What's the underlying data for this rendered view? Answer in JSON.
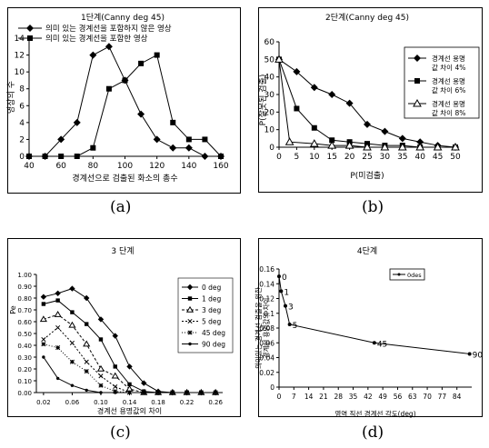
{
  "figure": {
    "captions": [
      "(a)",
      "(b)",
      "(c)",
      "(d)"
    ]
  },
  "chart_data": [
    {
      "type": "line",
      "title": "1단계(Canny deg 45)",
      "xlabel": "경계선으로 검출된 화소의 총수",
      "ylabel": "영상의 수",
      "xlim": [
        40,
        160
      ],
      "ylim": [
        0,
        14
      ],
      "x_ticks": [
        "40",
        "60",
        "80",
        "100",
        "120",
        "140",
        "160"
      ],
      "y_ticks": [
        "0",
        "2",
        "4",
        "6",
        "8",
        "10",
        "12",
        "14"
      ],
      "legend_position": "top",
      "x": [
        40,
        50,
        60,
        70,
        80,
        90,
        100,
        110,
        120,
        130,
        140,
        150,
        160
      ],
      "series": [
        {
          "name": "의미 있는 경계선을 포함하지 않은 영상",
          "marker": "diamond",
          "values": [
            0,
            0,
            2,
            4,
            12,
            13,
            9,
            5,
            2,
            1,
            1,
            0,
            0
          ]
        },
        {
          "name": "의미 있는 경계선을 포함한 영상",
          "marker": "square",
          "values": [
            0,
            0,
            0,
            0,
            1,
            8,
            9,
            11,
            12,
            4,
            2,
            2,
            0
          ]
        }
      ]
    },
    {
      "type": "line",
      "title": "2단계(Canny deg 45)",
      "xlabel": "P(미검출)",
      "ylabel": "P(잘못된 검출)",
      "xlim": [
        0,
        50
      ],
      "ylim": [
        0,
        60
      ],
      "x_ticks": [
        "0",
        "5",
        "10",
        "15",
        "20",
        "25",
        "30",
        "35",
        "40",
        "45",
        "50"
      ],
      "y_ticks": [
        "0",
        "10",
        "20",
        "30",
        "40",
        "50",
        "60"
      ],
      "legend_position": "right",
      "series": [
        {
          "name_line1": "경계선 용명",
          "name_line2": "값 차이 4%",
          "marker": "diamond",
          "x": [
            0,
            5,
            10,
            15,
            20,
            25,
            30,
            35,
            40,
            45,
            50
          ],
          "values": [
            50,
            43,
            34,
            30,
            25,
            13,
            9,
            5,
            3,
            1,
            0
          ]
        },
        {
          "name_line1": "경계선 용명",
          "name_line2": "값 차이 6%",
          "marker": "square",
          "x": [
            0,
            5,
            10,
            15,
            20,
            25,
            30,
            35,
            40,
            45,
            50
          ],
          "values": [
            50,
            22,
            11,
            4,
            3,
            2,
            1,
            1,
            0,
            0,
            0
          ]
        },
        {
          "name_line1": "경계선 용명",
          "name_line2": "값 차이 8%",
          "marker": "triangle",
          "x": [
            0,
            3,
            10,
            15,
            20,
            25,
            30,
            35,
            40,
            45,
            50
          ],
          "values": [
            50,
            3,
            2,
            1,
            1,
            0,
            0,
            0,
            0,
            0,
            0
          ]
        }
      ]
    },
    {
      "type": "line",
      "title": "3 단계",
      "xlabel": "경계선 용명값의 차이",
      "ylabel": "Pe",
      "xlim": [
        0.01,
        0.27
      ],
      "ylim": [
        0,
        1.0
      ],
      "x_ticks": [
        "0.02",
        "0.06",
        "0.10",
        "0.14",
        "0.18",
        "0.22",
        "0.26"
      ],
      "y_ticks": [
        "0.00",
        "0.10",
        "0.20",
        "0.30",
        "0.40",
        "0.50",
        "0.60",
        "0.70",
        "0.80",
        "0.90",
        "1.00"
      ],
      "legend_position": "right",
      "x": [
        0.02,
        0.04,
        0.06,
        0.08,
        0.1,
        0.12,
        0.14,
        0.16,
        0.18,
        0.2,
        0.22,
        0.24,
        0.26
      ],
      "series": [
        {
          "name": "0 deg",
          "marker": "diamond",
          "values": [
            0.81,
            0.84,
            0.88,
            0.8,
            0.62,
            0.48,
            0.22,
            0.08,
            0.01,
            0,
            0,
            0,
            0
          ]
        },
        {
          "name": "1 deg",
          "marker": "square",
          "values": [
            0.75,
            0.78,
            0.68,
            0.58,
            0.45,
            0.22,
            0.07,
            0.01,
            0,
            0,
            0,
            0,
            0
          ]
        },
        {
          "name": "3 deg",
          "marker": "triangle",
          "values": [
            0.62,
            0.66,
            0.57,
            0.41,
            0.2,
            0.14,
            0.03,
            0,
            0,
            0,
            0,
            0,
            0
          ]
        },
        {
          "name": "5 deg",
          "marker": "x",
          "values": [
            0.45,
            0.55,
            0.42,
            0.26,
            0.14,
            0.05,
            0,
            0,
            0,
            0,
            0,
            0,
            0
          ]
        },
        {
          "name": "45 deg",
          "marker": "star",
          "values": [
            0.41,
            0.38,
            0.26,
            0.18,
            0.06,
            0.01,
            0,
            0,
            0,
            0,
            0,
            0,
            0
          ]
        },
        {
          "name": "90 deg",
          "marker": "dot",
          "values": [
            0.3,
            0.12,
            0.06,
            0.02,
            0,
            0,
            0,
            0,
            0,
            0,
            0,
            0,
            0
          ]
        }
      ]
    },
    {
      "type": "line",
      "title": "4단계",
      "xlabel": "영역 직선 경계선 각도(deg)",
      "ylabel": "의미있는 경계선 검출을 위한 경계선 용명값의 차이",
      "xlim": [
        0,
        91
      ],
      "ylim": [
        0,
        0.16
      ],
      "x_ticks": [
        "0",
        "7",
        "14",
        "21",
        "28",
        "35",
        "42",
        "49",
        "56",
        "63",
        "70",
        "77",
        "84"
      ],
      "y_ticks": [
        "0",
        "0.02",
        "0.04",
        "0.06",
        "0.08",
        "0.1",
        "0.12",
        "0.14",
        "0.16"
      ],
      "legend_position": "top-right",
      "series": [
        {
          "name": "0des",
          "marker": "dot",
          "x": [
            0,
            1,
            3,
            5,
            45,
            90
          ],
          "values": [
            0.15,
            0.13,
            0.11,
            0.085,
            0.06,
            0.045
          ],
          "point_labels": [
            "0",
            "1",
            "3",
            "5",
            "45",
            "90"
          ]
        }
      ]
    }
  ]
}
